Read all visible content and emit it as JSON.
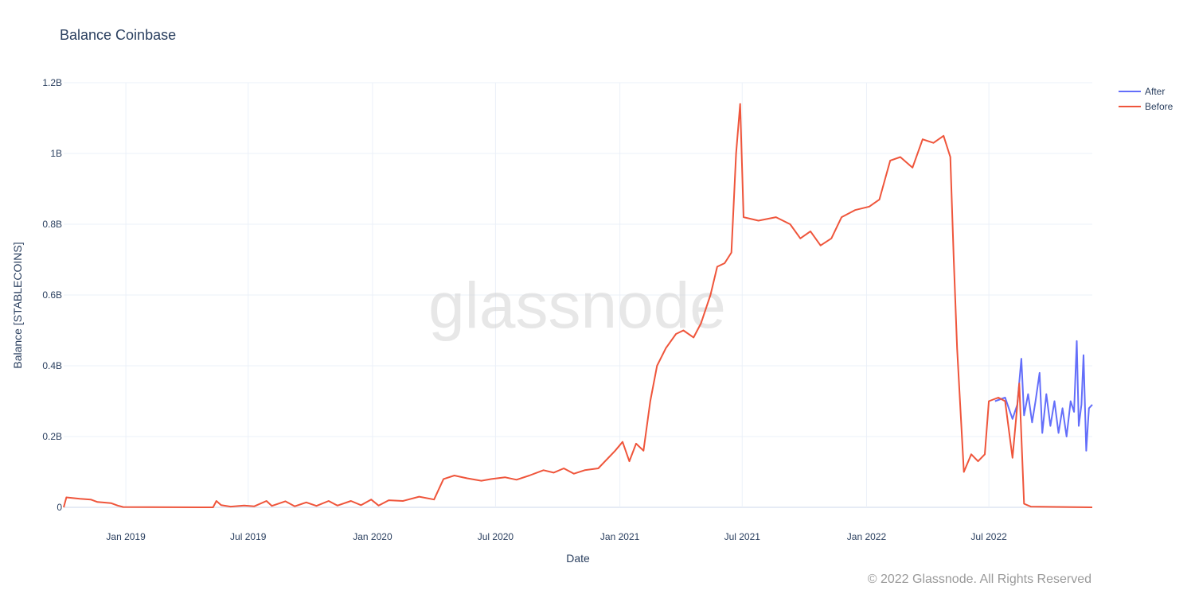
{
  "watermark": "glassnode",
  "copyright": "© 2022 Glassnode. All Rights Reserved",
  "chart_data": {
    "type": "line",
    "title": "Balance Coinbase",
    "xlabel": "Date",
    "ylabel": "Balance [STABLECOINS]",
    "xlim": [
      "2018-10-01",
      "2022-12-01"
    ],
    "ylim": [
      0,
      1200000000
    ],
    "x_ticks": [
      {
        "date": "2019-01-01",
        "label": "Jan 2019"
      },
      {
        "date": "2019-07-01",
        "label": "Jul 2019"
      },
      {
        "date": "2020-01-01",
        "label": "Jan 2020"
      },
      {
        "date": "2020-07-01",
        "label": "Jul 2020"
      },
      {
        "date": "2021-01-01",
        "label": "Jan 2021"
      },
      {
        "date": "2021-07-01",
        "label": "Jul 2021"
      },
      {
        "date": "2022-01-01",
        "label": "Jan 2022"
      },
      {
        "date": "2022-07-01",
        "label": "Jul 2022"
      }
    ],
    "y_ticks": [
      {
        "value": 0,
        "label": "0"
      },
      {
        "value": 200000000,
        "label": "0.2B"
      },
      {
        "value": 400000000,
        "label": "0.4B"
      },
      {
        "value": 600000000,
        "label": "0.6B"
      },
      {
        "value": 800000000,
        "label": "0.8B"
      },
      {
        "value": 1000000000,
        "label": "1B"
      },
      {
        "value": 1200000000,
        "label": "1.2B"
      }
    ],
    "grid": true,
    "legend_position": "top-right",
    "series": [
      {
        "name": "After",
        "color": "#636efa",
        "points": [
          [
            "2022-07-10",
            300000000
          ],
          [
            "2022-07-25",
            310000000
          ],
          [
            "2022-08-05",
            250000000
          ],
          [
            "2022-08-12",
            290000000
          ],
          [
            "2022-08-18",
            420000000
          ],
          [
            "2022-08-22",
            260000000
          ],
          [
            "2022-08-28",
            320000000
          ],
          [
            "2022-09-03",
            240000000
          ],
          [
            "2022-09-08",
            300000000
          ],
          [
            "2022-09-14",
            380000000
          ],
          [
            "2022-09-18",
            210000000
          ],
          [
            "2022-09-24",
            320000000
          ],
          [
            "2022-09-30",
            230000000
          ],
          [
            "2022-10-06",
            300000000
          ],
          [
            "2022-10-12",
            210000000
          ],
          [
            "2022-10-18",
            280000000
          ],
          [
            "2022-10-24",
            200000000
          ],
          [
            "2022-10-30",
            300000000
          ],
          [
            "2022-11-04",
            270000000
          ],
          [
            "2022-11-08",
            470000000
          ],
          [
            "2022-11-11",
            230000000
          ],
          [
            "2022-11-15",
            290000000
          ],
          [
            "2022-11-18",
            430000000
          ],
          [
            "2022-11-22",
            160000000
          ],
          [
            "2022-11-26",
            280000000
          ],
          [
            "2022-12-01",
            290000000
          ]
        ]
      },
      {
        "name": "Before",
        "color": "#ef553b",
        "points": [
          [
            "2018-10-01",
            0
          ],
          [
            "2018-10-05",
            28000000
          ],
          [
            "2018-10-25",
            24000000
          ],
          [
            "2018-11-10",
            22000000
          ],
          [
            "2018-11-20",
            15000000
          ],
          [
            "2018-12-10",
            12000000
          ],
          [
            "2018-12-20",
            5000000
          ],
          [
            "2018-12-28",
            1000000
          ],
          [
            "2019-05-10",
            0
          ],
          [
            "2019-05-15",
            18000000
          ],
          [
            "2019-05-22",
            6000000
          ],
          [
            "2019-06-05",
            2000000
          ],
          [
            "2019-06-25",
            5000000
          ],
          [
            "2019-07-10",
            3000000
          ],
          [
            "2019-07-28",
            18000000
          ],
          [
            "2019-08-05",
            4000000
          ],
          [
            "2019-08-25",
            17000000
          ],
          [
            "2019-09-08",
            3000000
          ],
          [
            "2019-09-25",
            14000000
          ],
          [
            "2019-10-10",
            4000000
          ],
          [
            "2019-10-28",
            18000000
          ],
          [
            "2019-11-10",
            5000000
          ],
          [
            "2019-11-30",
            18000000
          ],
          [
            "2019-12-15",
            6000000
          ],
          [
            "2019-12-30",
            22000000
          ],
          [
            "2020-01-10",
            5000000
          ],
          [
            "2020-01-25",
            20000000
          ],
          [
            "2020-02-15",
            18000000
          ],
          [
            "2020-03-10",
            30000000
          ],
          [
            "2020-04-01",
            22000000
          ],
          [
            "2020-04-15",
            80000000
          ],
          [
            "2020-05-01",
            90000000
          ],
          [
            "2020-05-20",
            82000000
          ],
          [
            "2020-06-10",
            75000000
          ],
          [
            "2020-06-25",
            80000000
          ],
          [
            "2020-07-15",
            85000000
          ],
          [
            "2020-08-01",
            78000000
          ],
          [
            "2020-08-20",
            90000000
          ],
          [
            "2020-09-10",
            105000000
          ],
          [
            "2020-09-25",
            98000000
          ],
          [
            "2020-10-10",
            110000000
          ],
          [
            "2020-10-25",
            95000000
          ],
          [
            "2020-11-10",
            105000000
          ],
          [
            "2020-11-30",
            110000000
          ],
          [
            "2020-12-10",
            130000000
          ],
          [
            "2020-12-25",
            160000000
          ],
          [
            "2021-01-05",
            185000000
          ],
          [
            "2021-01-15",
            130000000
          ],
          [
            "2021-01-25",
            180000000
          ],
          [
            "2021-02-05",
            160000000
          ],
          [
            "2021-02-15",
            300000000
          ],
          [
            "2021-02-25",
            400000000
          ],
          [
            "2021-03-10",
            450000000
          ],
          [
            "2021-03-25",
            490000000
          ],
          [
            "2021-04-05",
            500000000
          ],
          [
            "2021-04-20",
            480000000
          ],
          [
            "2021-05-01",
            520000000
          ],
          [
            "2021-05-15",
            600000000
          ],
          [
            "2021-05-25",
            680000000
          ],
          [
            "2021-06-05",
            690000000
          ],
          [
            "2021-06-15",
            720000000
          ],
          [
            "2021-06-22",
            1000000000
          ],
          [
            "2021-06-28",
            1140000000
          ],
          [
            "2021-07-03",
            820000000
          ],
          [
            "2021-07-25",
            810000000
          ],
          [
            "2021-08-20",
            820000000
          ],
          [
            "2021-09-10",
            800000000
          ],
          [
            "2021-09-25",
            760000000
          ],
          [
            "2021-10-10",
            780000000
          ],
          [
            "2021-10-25",
            740000000
          ],
          [
            "2021-11-10",
            760000000
          ],
          [
            "2021-11-25",
            820000000
          ],
          [
            "2021-12-15",
            840000000
          ],
          [
            "2022-01-05",
            850000000
          ],
          [
            "2022-01-20",
            870000000
          ],
          [
            "2022-02-05",
            980000000
          ],
          [
            "2022-02-20",
            990000000
          ],
          [
            "2022-03-10",
            960000000
          ],
          [
            "2022-03-25",
            1040000000
          ],
          [
            "2022-04-10",
            1030000000
          ],
          [
            "2022-04-25",
            1050000000
          ],
          [
            "2022-05-05",
            990000000
          ],
          [
            "2022-05-10",
            700000000
          ],
          [
            "2022-05-15",
            450000000
          ],
          [
            "2022-05-25",
            100000000
          ],
          [
            "2022-06-05",
            150000000
          ],
          [
            "2022-06-15",
            130000000
          ],
          [
            "2022-06-25",
            150000000
          ],
          [
            "2022-07-01",
            300000000
          ],
          [
            "2022-07-15",
            310000000
          ],
          [
            "2022-07-25",
            300000000
          ],
          [
            "2022-08-05",
            140000000
          ],
          [
            "2022-08-15",
            350000000
          ],
          [
            "2022-08-22",
            10000000
          ],
          [
            "2022-09-01",
            2000000
          ],
          [
            "2022-12-01",
            0
          ]
        ]
      }
    ]
  }
}
